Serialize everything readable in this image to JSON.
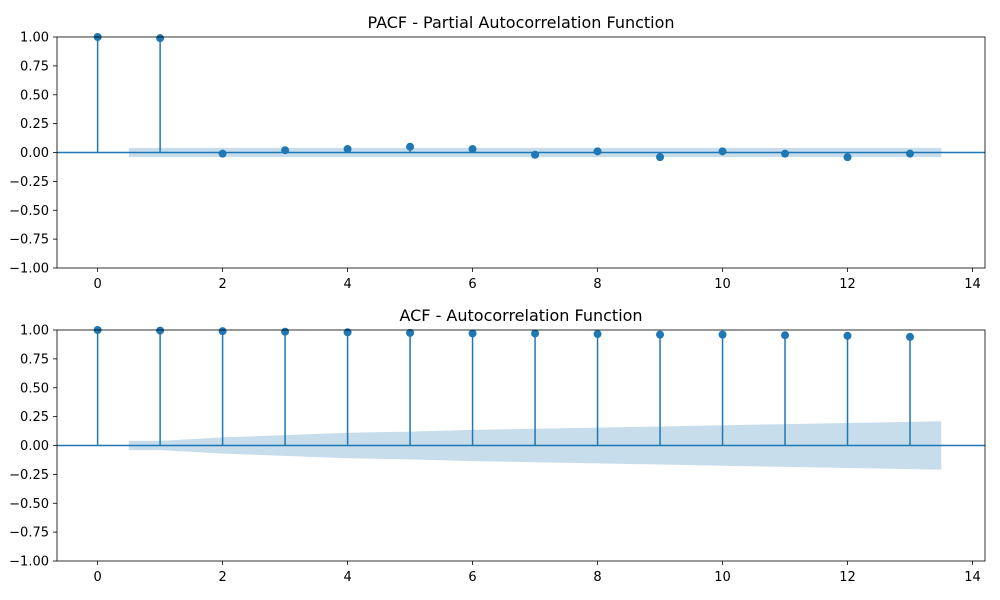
{
  "chart_data": [
    {
      "type": "stem",
      "title": "PACF - Partial Autocorrelation Function",
      "xlabel": "",
      "ylabel": "",
      "x": [
        0,
        1,
        2,
        3,
        4,
        5,
        6,
        7,
        8,
        9,
        10,
        11,
        12,
        13
      ],
      "values": [
        1.0,
        0.99,
        -0.01,
        0.02,
        0.03,
        0.05,
        0.03,
        -0.02,
        0.01,
        -0.04,
        0.01,
        -0.01,
        -0.04,
        -0.01
      ],
      "conf_lags": [
        0.5,
        13.5
      ],
      "conf_upper": [
        0.04,
        0.04
      ],
      "conf_lower": [
        -0.04,
        -0.04
      ],
      "xlim": [
        -0.65,
        14.2
      ],
      "ylim": [
        -1.0,
        1.0
      ],
      "xticks": [
        0,
        2,
        4,
        6,
        8,
        10,
        12,
        14
      ],
      "xtick_labels": [
        "0",
        "2",
        "4",
        "6",
        "8",
        "10",
        "12",
        "14"
      ],
      "yticks": [
        1.0,
        0.75,
        0.5,
        0.25,
        0.0,
        -0.25,
        -0.5,
        -0.75,
        -1.0
      ],
      "ytick_labels": [
        "1.00",
        "0.75",
        "0.50",
        "0.25",
        "0.00",
        "−0.25",
        "−0.50",
        "−0.75",
        "−1.00"
      ],
      "grid": false
    },
    {
      "type": "stem",
      "title": "ACF - Autocorrelation Function",
      "xlabel": "",
      "ylabel": "",
      "x": [
        0,
        1,
        2,
        3,
        4,
        5,
        6,
        7,
        8,
        9,
        10,
        11,
        12,
        13
      ],
      "values": [
        1.0,
        0.995,
        0.99,
        0.985,
        0.98,
        0.975,
        0.97,
        0.97,
        0.965,
        0.96,
        0.96,
        0.955,
        0.95,
        0.94
      ],
      "conf_lags": [
        0.5,
        1,
        2,
        3,
        4,
        5,
        6,
        7,
        8,
        9,
        10,
        11,
        12,
        13,
        13.5
      ],
      "conf_upper": [
        0.04,
        0.04,
        0.07,
        0.09,
        0.11,
        0.12,
        0.135,
        0.145,
        0.155,
        0.165,
        0.175,
        0.185,
        0.195,
        0.205,
        0.21
      ],
      "conf_lower": [
        -0.04,
        -0.04,
        -0.07,
        -0.09,
        -0.11,
        -0.12,
        -0.135,
        -0.145,
        -0.155,
        -0.165,
        -0.175,
        -0.185,
        -0.195,
        -0.205,
        -0.21
      ],
      "xlim": [
        -0.65,
        14.2
      ],
      "ylim": [
        -1.0,
        1.0
      ],
      "xticks": [
        0,
        2,
        4,
        6,
        8,
        10,
        12,
        14
      ],
      "xtick_labels": [
        "0",
        "2",
        "4",
        "6",
        "8",
        "10",
        "12",
        "14"
      ],
      "yticks": [
        1.0,
        0.75,
        0.5,
        0.25,
        0.0,
        -0.25,
        -0.5,
        -0.75,
        -1.0
      ],
      "ytick_labels": [
        "1.00",
        "0.75",
        "0.50",
        "0.25",
        "0.00",
        "−0.25",
        "−0.50",
        "−0.75",
        "−1.00"
      ],
      "grid": false
    }
  ]
}
